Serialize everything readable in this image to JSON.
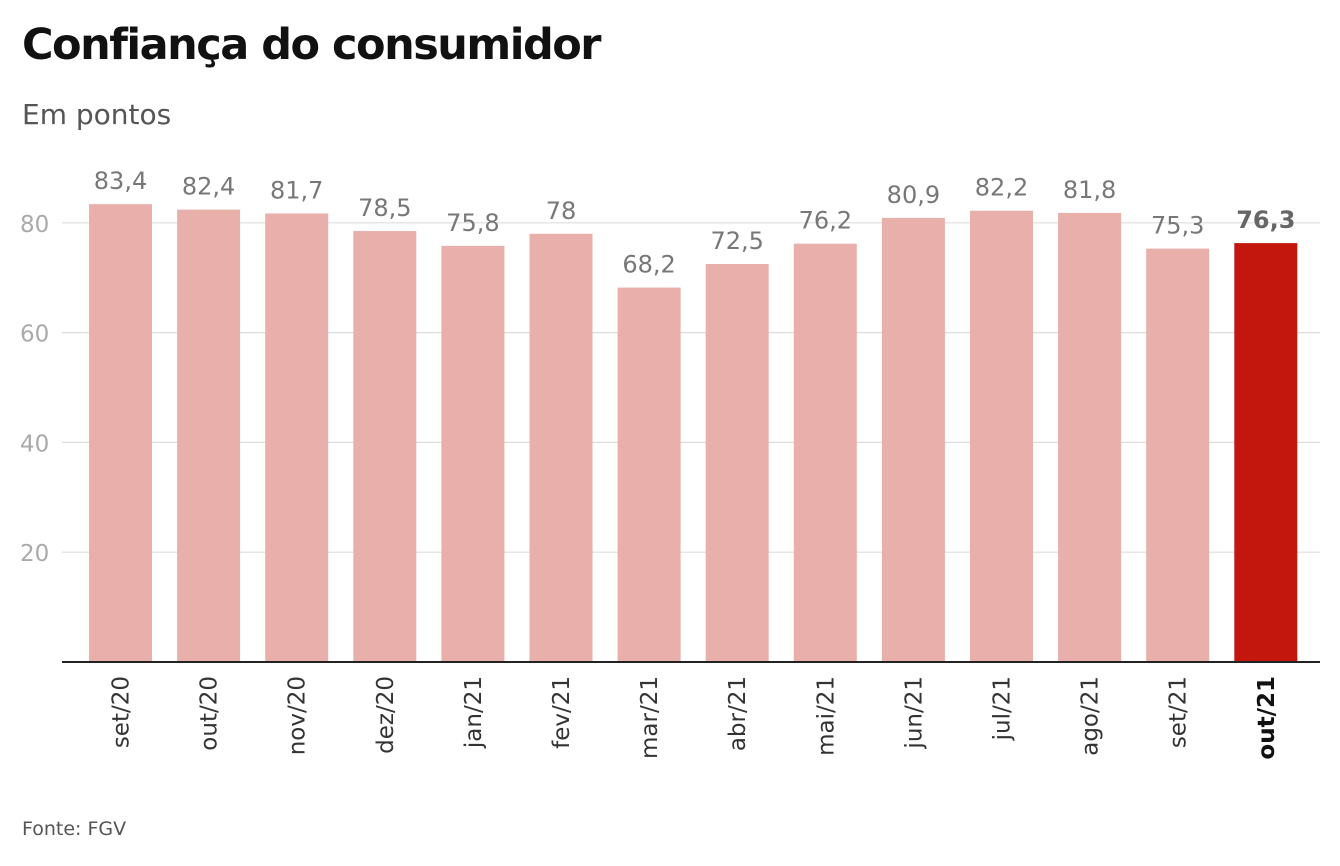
{
  "title": "Confiança do consumidor",
  "subtitle": "Em pontos",
  "source": "Fonte: FGV",
  "colors": {
    "bar": "#e8afab",
    "highlight": "#c3170d",
    "value_label": "#777777",
    "highlight_label": "#666666",
    "axis_tick": "#aaaaaa",
    "grid": "#dddddd",
    "baseline": "#222222",
    "category_label": "#333333"
  },
  "chart_data": {
    "type": "bar",
    "title": "Confiança do consumidor",
    "subtitle": "Em pontos",
    "categories": [
      "set/20",
      "out/20",
      "nov/20",
      "dez/20",
      "jan/21",
      "fev/21",
      "mar/21",
      "abr/21",
      "mai/21",
      "jun/21",
      "jul/21",
      "ago/21",
      "set/21",
      "out/21"
    ],
    "values": [
      83.4,
      82.4,
      81.7,
      78.5,
      75.8,
      78,
      68.2,
      72.5,
      76.2,
      80.9,
      82.2,
      81.8,
      75.3,
      76.3
    ],
    "value_labels": [
      "83,4",
      "82,4",
      "81,7",
      "78,5",
      "75,8",
      "78",
      "68,2",
      "72,5",
      "76,2",
      "80,9",
      "82,2",
      "81,8",
      "75,3",
      "76,3"
    ],
    "highlight_index": 13,
    "yticks": [
      20,
      40,
      60,
      80
    ],
    "ytick_labels": [
      "20",
      "40",
      "60",
      "80"
    ],
    "ylim": [
      0,
      92
    ],
    "grid": true,
    "legend": "none",
    "xlabel": "",
    "ylabel": ""
  }
}
